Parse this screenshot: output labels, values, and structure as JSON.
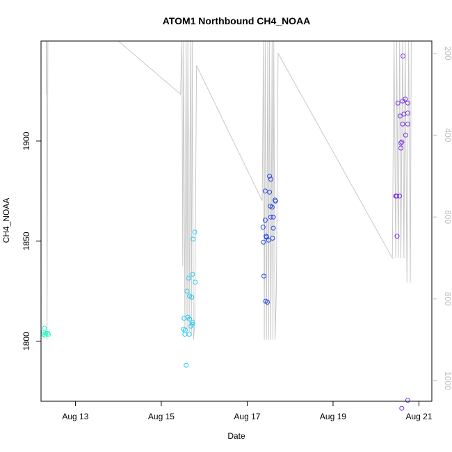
{
  "chart_data": {
    "type": "scatter",
    "title": "ATOM1 Northbound CH4_NOAA",
    "xlabel": "Date",
    "ylabel": "CH4_NOAA",
    "xlim": [
      12.2,
      21.3
    ],
    "ylim": [
      1770,
      1950
    ],
    "x_ticks": [
      {
        "value": 13,
        "label": "Aug 13"
      },
      {
        "value": 15,
        "label": "Aug 15"
      },
      {
        "value": 17,
        "label": "Aug 17"
      },
      {
        "value": 19,
        "label": "Aug 19"
      },
      {
        "value": 21,
        "label": "Aug 21"
      }
    ],
    "y_ticks": [
      {
        "value": 1800,
        "label": "1800"
      },
      {
        "value": 1850,
        "label": "1850"
      },
      {
        "value": 1900,
        "label": "1900"
      }
    ],
    "right_axis": {
      "lim": [
        1050,
        170
      ],
      "ticks": [
        {
          "value": 200,
          "label": "200"
        },
        {
          "value": 400,
          "label": "400"
        },
        {
          "value": 600,
          "label": "600"
        },
        {
          "value": 800,
          "label": "800"
        },
        {
          "value": 1000,
          "label": "1000"
        }
      ],
      "color": "#bdbdbd"
    },
    "grid": false,
    "series": [
      {
        "color": "#2ef5c0",
        "points": [
          {
            "x": 12.28,
            "y": 1806.5
          },
          {
            "x": 12.26,
            "y": 1804.5
          },
          {
            "x": 12.31,
            "y": 1804.0
          },
          {
            "x": 12.36,
            "y": 1804.0
          },
          {
            "x": 12.25,
            "y": 1803.5
          },
          {
            "x": 12.37,
            "y": 1803.3
          },
          {
            "x": 12.29,
            "y": 1803.0
          }
        ]
      },
      {
        "color": "#22c8f0",
        "points": [
          {
            "x": 15.78,
            "y": 1854.5
          },
          {
            "x": 15.74,
            "y": 1851.0
          },
          {
            "x": 15.73,
            "y": 1833.5
          },
          {
            "x": 15.64,
            "y": 1831.5
          },
          {
            "x": 15.79,
            "y": 1829.5
          },
          {
            "x": 15.6,
            "y": 1825.0
          },
          {
            "x": 15.66,
            "y": 1822.5
          },
          {
            "x": 15.71,
            "y": 1822.0
          },
          {
            "x": 15.53,
            "y": 1811.5
          },
          {
            "x": 15.62,
            "y": 1812.0
          },
          {
            "x": 15.66,
            "y": 1811.0
          },
          {
            "x": 15.73,
            "y": 1809.5
          },
          {
            "x": 15.72,
            "y": 1808.5
          },
          {
            "x": 15.69,
            "y": 1807.5
          },
          {
            "x": 15.52,
            "y": 1806.0
          },
          {
            "x": 15.56,
            "y": 1805.5
          },
          {
            "x": 15.55,
            "y": 1803.5
          },
          {
            "x": 15.65,
            "y": 1803.5
          },
          {
            "x": 15.58,
            "y": 1788.0
          }
        ]
      },
      {
        "color": "#2848e0",
        "points": [
          {
            "x": 17.52,
            "y": 1882.5
          },
          {
            "x": 17.55,
            "y": 1881.0
          },
          {
            "x": 17.42,
            "y": 1875.0
          },
          {
            "x": 17.52,
            "y": 1874.5
          },
          {
            "x": 17.65,
            "y": 1870.5
          },
          {
            "x": 17.66,
            "y": 1870.0
          },
          {
            "x": 17.54,
            "y": 1867.5
          },
          {
            "x": 17.58,
            "y": 1867.0
          },
          {
            "x": 17.55,
            "y": 1862.0
          },
          {
            "x": 17.61,
            "y": 1862.0
          },
          {
            "x": 17.42,
            "y": 1860.5
          },
          {
            "x": 17.37,
            "y": 1857.0
          },
          {
            "x": 17.61,
            "y": 1856.5
          },
          {
            "x": 17.44,
            "y": 1852.5
          },
          {
            "x": 17.45,
            "y": 1852.0
          },
          {
            "x": 17.59,
            "y": 1851.5
          },
          {
            "x": 17.5,
            "y": 1850.5
          },
          {
            "x": 17.38,
            "y": 1849.5
          },
          {
            "x": 17.39,
            "y": 1832.5
          },
          {
            "x": 17.43,
            "y": 1820.0
          },
          {
            "x": 17.47,
            "y": 1819.5
          }
        ]
      },
      {
        "color": "#7a2ee8",
        "points": [
          {
            "x": 20.63,
            "y": 1942.5
          },
          {
            "x": 20.68,
            "y": 1921.0
          },
          {
            "x": 20.62,
            "y": 1920.0
          },
          {
            "x": 20.74,
            "y": 1919.0
          },
          {
            "x": 20.51,
            "y": 1919.0
          },
          {
            "x": 20.74,
            "y": 1914.0
          },
          {
            "x": 20.65,
            "y": 1913.5
          },
          {
            "x": 20.56,
            "y": 1912.5
          },
          {
            "x": 20.62,
            "y": 1908.5
          },
          {
            "x": 20.74,
            "y": 1908.5
          },
          {
            "x": 20.69,
            "y": 1903.0
          },
          {
            "x": 20.6,
            "y": 1899.5
          },
          {
            "x": 20.58,
            "y": 1899.0
          },
          {
            "x": 20.58,
            "y": 1896.5
          },
          {
            "x": 20.46,
            "y": 1872.5
          },
          {
            "x": 20.48,
            "y": 1872.5
          },
          {
            "x": 20.55,
            "y": 1872.5
          },
          {
            "x": 20.49,
            "y": 1852.5
          },
          {
            "x": 20.74,
            "y": 1770.5
          },
          {
            "x": 20.6,
            "y": 1766.5
          }
        ]
      }
    ],
    "altitude_trace": {
      "color": "#c8c8c8",
      "points": [
        [
          12.32,
          160
        ],
        [
          12.32,
          300
        ],
        [
          12.33,
          160
        ],
        [
          12.34,
          900
        ],
        [
          12.36,
          160
        ],
        [
          12.38,
          160
        ],
        [
          14.0,
          170
        ],
        [
          15.45,
          300
        ],
        [
          15.48,
          170
        ],
        [
          15.5,
          720
        ],
        [
          15.52,
          170
        ],
        [
          15.55,
          870
        ],
        [
          15.58,
          170
        ],
        [
          15.6,
          880
        ],
        [
          15.62,
          170
        ],
        [
          15.65,
          880
        ],
        [
          15.68,
          170
        ],
        [
          15.7,
          890
        ],
        [
          15.72,
          170
        ],
        [
          15.75,
          900
        ],
        [
          15.78,
          860
        ],
        [
          15.82,
          230
        ],
        [
          17.35,
          560
        ],
        [
          17.38,
          170
        ],
        [
          17.4,
          900
        ],
        [
          17.42,
          170
        ],
        [
          17.45,
          900
        ],
        [
          17.48,
          170
        ],
        [
          17.5,
          900
        ],
        [
          17.52,
          170
        ],
        [
          17.55,
          900
        ],
        [
          17.58,
          170
        ],
        [
          17.6,
          900
        ],
        [
          17.62,
          170
        ],
        [
          17.65,
          900
        ],
        [
          17.68,
          780
        ],
        [
          17.72,
          200
        ],
        [
          20.38,
          700
        ],
        [
          20.42,
          170
        ],
        [
          20.46,
          700
        ],
        [
          20.48,
          170
        ],
        [
          20.52,
          700
        ],
        [
          20.55,
          170
        ],
        [
          20.58,
          700
        ],
        [
          20.62,
          170
        ],
        [
          20.65,
          700
        ],
        [
          20.68,
          170
        ],
        [
          20.72,
          760
        ],
        [
          20.76,
          170
        ],
        [
          20.8,
          760
        ],
        [
          20.82,
          170
        ]
      ]
    }
  }
}
